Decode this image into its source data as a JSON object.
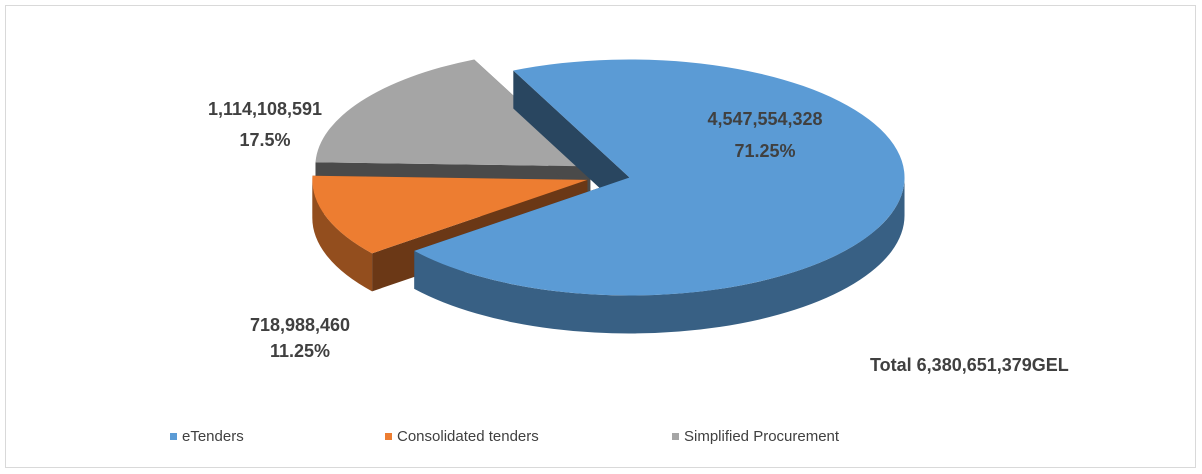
{
  "chart_data": {
    "type": "pie3d",
    "categories": [
      "eTenders",
      "Consolidated tenders",
      "Simplified Procurement"
    ],
    "values": [
      71.25,
      11.25,
      17.5
    ],
    "value_labels": [
      "71.25%",
      "11.25%",
      "17.5%"
    ],
    "amounts": [
      {
        "value": 4547554328,
        "label": "4,547,554,328"
      },
      {
        "value": 718988460,
        "label": "718,988,460"
      },
      {
        "value": 1114108591,
        "label": "1,114,108,591"
      }
    ],
    "colors": [
      "#5b9bd5",
      "#ed7d31",
      "#a5a5a5"
    ],
    "total_label": "Total",
    "total": {
      "value": 6380651379,
      "label": "6,380,651,379"
    },
    "total_unit": "GEL",
    "legend": "bottom"
  }
}
